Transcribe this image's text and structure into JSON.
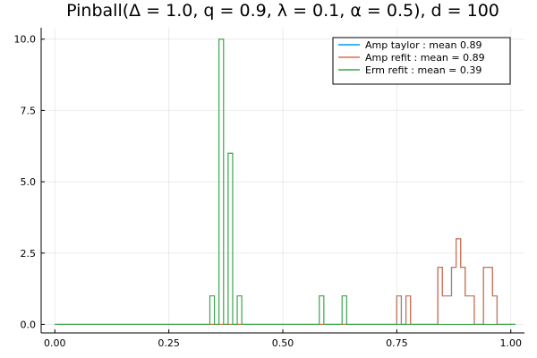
{
  "chart_data": {
    "type": "line",
    "title": "Pinball(Δ = 1.0, q = 0.9, λ = 0.1, α = 0.5), d = 100",
    "xlabel": "",
    "ylabel": "",
    "xlim": [
      -0.03,
      1.03
    ],
    "ylim": [
      -0.3,
      10.4
    ],
    "grid": true,
    "legend_position": "top-right",
    "x_ticks": [
      {
        "value": 0.0,
        "label": "0.00"
      },
      {
        "value": 0.25,
        "label": "0.25"
      },
      {
        "value": 0.5,
        "label": "0.50"
      },
      {
        "value": 0.75,
        "label": "0.75"
      },
      {
        "value": 1.0,
        "label": "1.00"
      }
    ],
    "y_ticks": [
      {
        "value": 0.0,
        "label": "0.0"
      },
      {
        "value": 2.5,
        "label": "2.5"
      },
      {
        "value": 5.0,
        "label": "5.0"
      },
      {
        "value": 7.5,
        "label": "7.5"
      },
      {
        "value": 10.0,
        "label": "10.0"
      }
    ],
    "series": [
      {
        "name": "Amp taylor : mean 0.89",
        "color": "#009af9",
        "bins": [
          [
            0.0,
            0.75,
            0
          ],
          [
            0.75,
            0.76,
            1
          ],
          [
            0.76,
            0.77,
            0
          ],
          [
            0.77,
            0.78,
            1
          ],
          [
            0.78,
            0.84,
            0
          ],
          [
            0.84,
            0.85,
            2
          ],
          [
            0.85,
            0.87,
            1
          ],
          [
            0.87,
            0.88,
            2
          ],
          [
            0.88,
            0.89,
            3
          ],
          [
            0.89,
            0.9,
            2
          ],
          [
            0.9,
            0.92,
            1
          ],
          [
            0.92,
            0.94,
            0
          ],
          [
            0.94,
            0.96,
            2
          ],
          [
            0.96,
            0.97,
            1
          ],
          [
            0.97,
            1.01,
            0
          ]
        ]
      },
      {
        "name": "Amp refit : mean = 0.89",
        "color": "#e26f46",
        "bins": [
          [
            0.0,
            0.75,
            0
          ],
          [
            0.75,
            0.76,
            1
          ],
          [
            0.76,
            0.77,
            0
          ],
          [
            0.77,
            0.78,
            1
          ],
          [
            0.78,
            0.84,
            0
          ],
          [
            0.84,
            0.85,
            2
          ],
          [
            0.85,
            0.87,
            1
          ],
          [
            0.87,
            0.88,
            2
          ],
          [
            0.88,
            0.89,
            3
          ],
          [
            0.89,
            0.9,
            2
          ],
          [
            0.9,
            0.92,
            1
          ],
          [
            0.92,
            0.94,
            0
          ],
          [
            0.94,
            0.96,
            2
          ],
          [
            0.96,
            0.97,
            1
          ],
          [
            0.97,
            1.01,
            0
          ]
        ]
      },
      {
        "name": "Erm refit : mean = 0.39",
        "color": "#3da44d",
        "bins": [
          [
            0.0,
            0.34,
            0
          ],
          [
            0.34,
            0.35,
            1
          ],
          [
            0.35,
            0.36,
            0
          ],
          [
            0.36,
            0.37,
            10
          ],
          [
            0.37,
            0.38,
            0
          ],
          [
            0.38,
            0.39,
            6
          ],
          [
            0.39,
            0.4,
            0
          ],
          [
            0.4,
            0.41,
            1
          ],
          [
            0.41,
            0.58,
            0
          ],
          [
            0.58,
            0.59,
            1
          ],
          [
            0.59,
            0.63,
            0
          ],
          [
            0.63,
            0.64,
            1
          ],
          [
            0.64,
            1.01,
            0
          ]
        ]
      }
    ]
  }
}
